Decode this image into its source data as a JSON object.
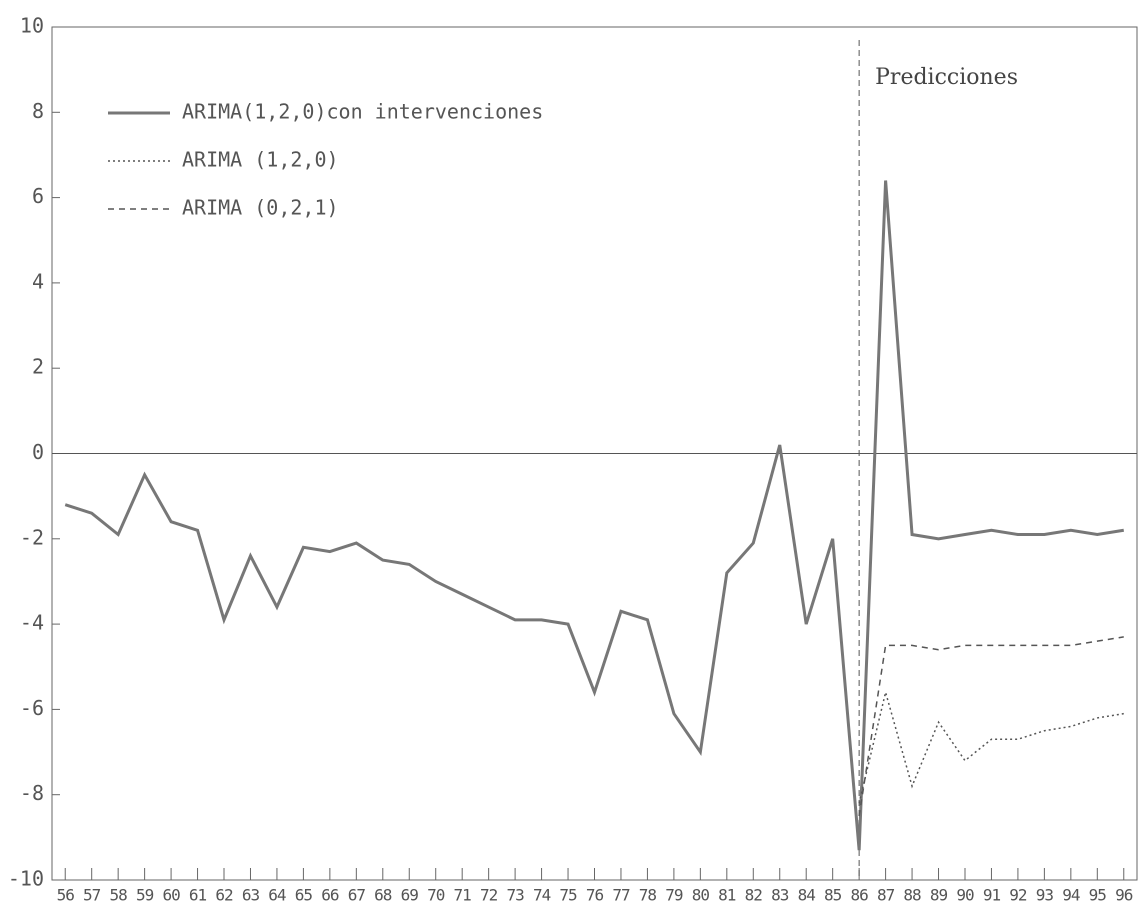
{
  "chart_data": {
    "type": "line",
    "annotation": "Predicciones",
    "categories": [
      "56",
      "57",
      "58",
      "59",
      "60",
      "61",
      "62",
      "63",
      "64",
      "65",
      "66",
      "67",
      "68",
      "69",
      "70",
      "71",
      "72",
      "73",
      "74",
      "75",
      "76",
      "77",
      "78",
      "79",
      "80",
      "81",
      "82",
      "83",
      "84",
      "85",
      "86",
      "87",
      "88",
      "89",
      "90",
      "91",
      "92",
      "93",
      "94",
      "95",
      "96"
    ],
    "series": [
      {
        "name": "ARIMA(1,2,0)con intervenciones",
        "color": "#777777",
        "dash": "solid",
        "values": [
          -1.2,
          -1.4,
          -1.9,
          -0.5,
          -1.6,
          -1.8,
          -3.9,
          -2.4,
          -3.6,
          -2.2,
          -2.3,
          -2.1,
          -2.5,
          -2.6,
          -3.0,
          -3.3,
          -3.6,
          -3.9,
          -3.9,
          -4.0,
          -5.6,
          -3.7,
          -3.9,
          -6.1,
          -7.0,
          -2.8,
          -2.1,
          0.2,
          -4.0,
          -2.0,
          -9.3,
          6.4,
          -1.9,
          -2.0,
          -1.9,
          -1.8,
          -1.9,
          -1.9,
          -1.8,
          -1.9,
          -1.8
        ]
      },
      {
        "name": "ARIMA (1,2,0)",
        "color": "#555555",
        "dash": "dotted",
        "values": [
          null,
          null,
          null,
          null,
          null,
          null,
          null,
          null,
          null,
          null,
          null,
          null,
          null,
          null,
          null,
          null,
          null,
          null,
          null,
          null,
          null,
          null,
          null,
          null,
          null,
          null,
          null,
          null,
          null,
          null,
          -8.2,
          -5.6,
          -7.8,
          -6.3,
          -7.2,
          -6.7,
          -6.7,
          -6.5,
          -6.4,
          -6.2,
          -6.1
        ]
      },
      {
        "name": "ARIMA (0,2,1)",
        "color": "#555555",
        "dash": "dashed",
        "values": [
          null,
          null,
          null,
          null,
          null,
          null,
          null,
          null,
          null,
          null,
          null,
          null,
          null,
          null,
          null,
          null,
          null,
          null,
          null,
          null,
          null,
          null,
          null,
          null,
          null,
          null,
          null,
          null,
          null,
          null,
          -8.5,
          -4.5,
          -4.5,
          -4.6,
          -4.5,
          -4.5,
          -4.5,
          -4.5,
          -4.5,
          -4.4,
          -4.3
        ]
      }
    ],
    "ylim": [
      -10,
      10
    ],
    "yticks": [
      -10,
      -8,
      -6,
      -4,
      -2,
      0,
      2,
      4,
      6,
      8,
      10
    ],
    "grid": false,
    "legend": "upper-left"
  }
}
